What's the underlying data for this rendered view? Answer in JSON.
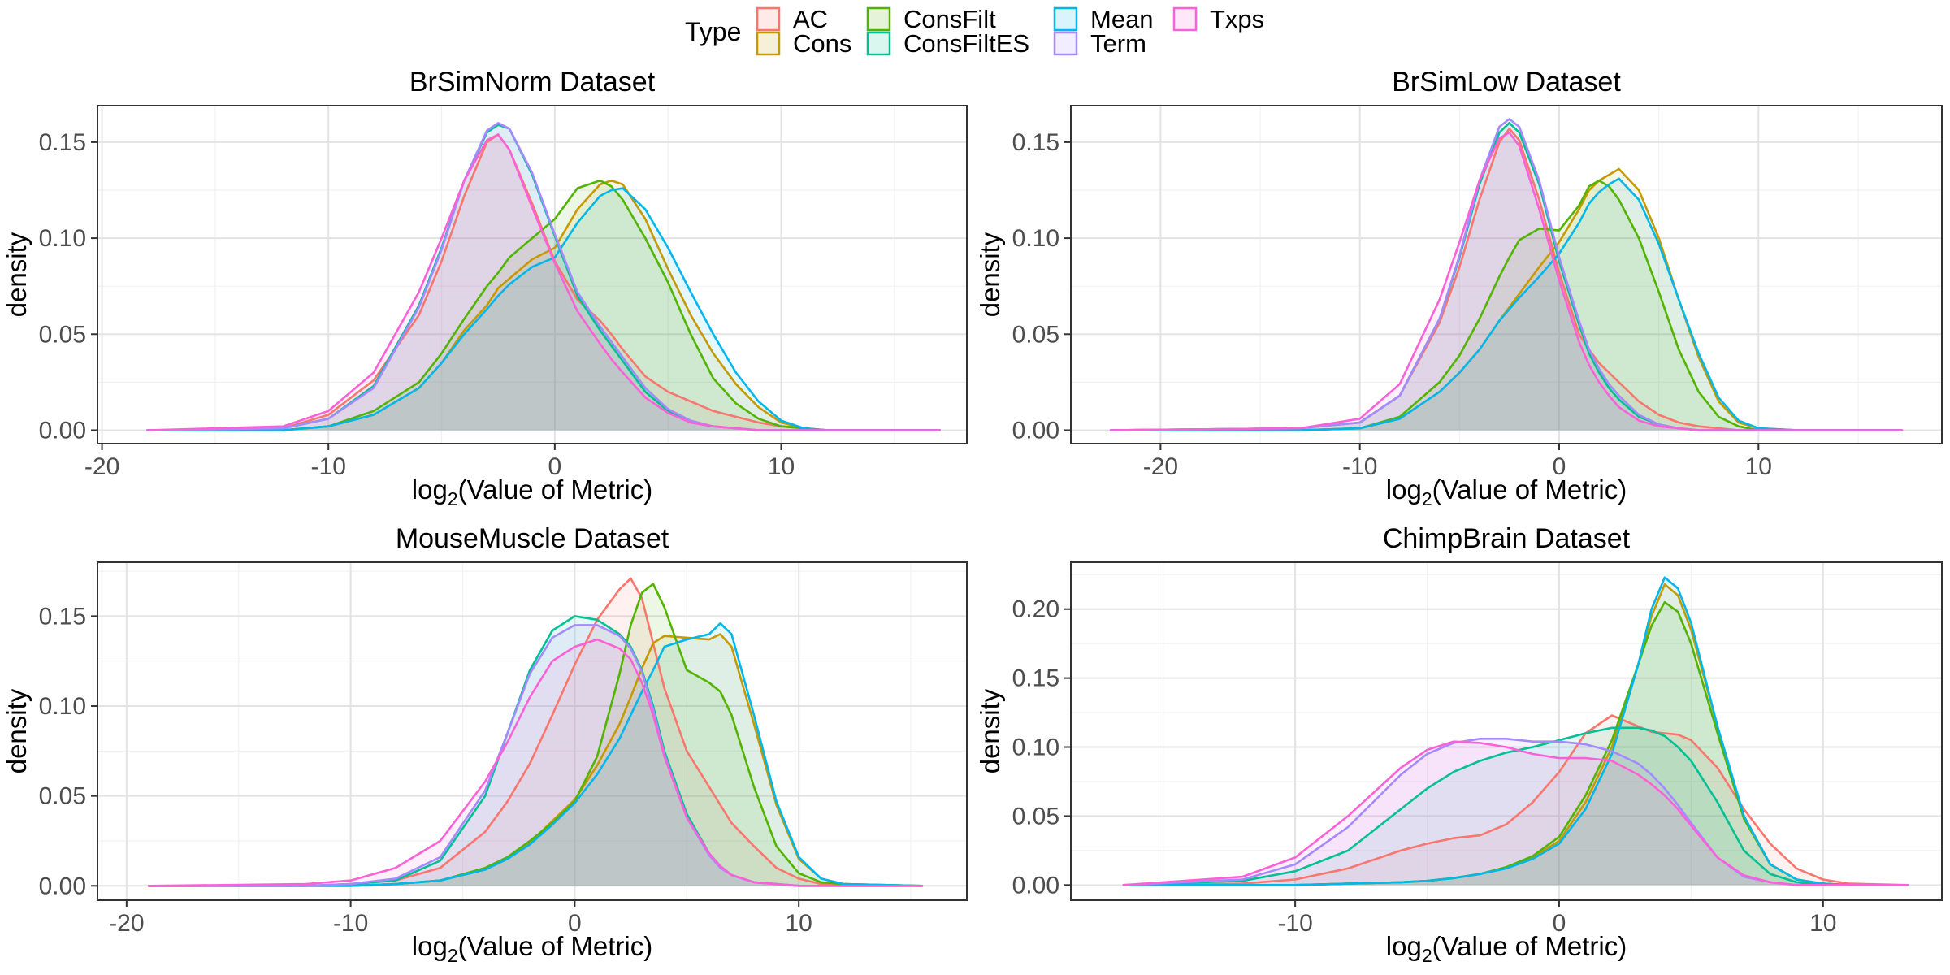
{
  "legend": {
    "title": "Type",
    "items": [
      {
        "label": "AC",
        "color": "#F8766D"
      },
      {
        "label": "Cons",
        "color": "#C49A00"
      },
      {
        "label": "ConsFilt",
        "color": "#53B400"
      },
      {
        "label": "ConsFiltES",
        "color": "#00C094"
      },
      {
        "label": "Mean",
        "color": "#00B6EB"
      },
      {
        "label": "Term",
        "color": "#A58AFF"
      },
      {
        "label": "Txps",
        "color": "#FB61D7"
      }
    ],
    "placement": "top"
  },
  "chart_data": [
    {
      "type": "area",
      "title": "BrSimNorm Dataset",
      "xlabel": "log2(Value of Metric)",
      "ylabel": "density",
      "xlim": [
        -20.2,
        18.2
      ],
      "ylim": [
        -0.007,
        0.169
      ],
      "xticks": [
        -20,
        -10,
        0,
        10
      ],
      "xtick_labels": [
        "-20",
        "-10",
        "0",
        "10"
      ],
      "yticks": [
        0,
        0.05,
        0.1,
        0.15
      ],
      "ytick_labels": [
        "0.00",
        "0.05",
        "0.10",
        "0.15"
      ],
      "grid": true,
      "x": [
        -18,
        -12,
        -10,
        -8,
        -6,
        -5,
        -4,
        -3,
        -2.5,
        -2,
        -1,
        0,
        1,
        2,
        2.5,
        3,
        4,
        5,
        6,
        7,
        8,
        9,
        10,
        11,
        12,
        14,
        17
      ],
      "series": [
        {
          "name": "AC",
          "values": [
            0,
            0.001,
            0.008,
            0.026,
            0.06,
            0.088,
            0.122,
            0.15,
            0.154,
            0.146,
            0.118,
            0.088,
            0.068,
            0.057,
            0.05,
            0.042,
            0.028,
            0.02,
            0.015,
            0.01,
            0.007,
            0.004,
            0.002,
            0.001,
            0,
            0,
            0
          ]
        },
        {
          "name": "Cons",
          "values": [
            0,
            0,
            0.002,
            0.008,
            0.022,
            0.035,
            0.052,
            0.065,
            0.074,
            0.079,
            0.089,
            0.095,
            0.115,
            0.128,
            0.13,
            0.128,
            0.11,
            0.084,
            0.06,
            0.04,
            0.024,
            0.012,
            0.004,
            0.001,
            0,
            0,
            0
          ]
        },
        {
          "name": "ConsFilt",
          "values": [
            0,
            0,
            0.002,
            0.01,
            0.025,
            0.04,
            0.058,
            0.075,
            0.082,
            0.09,
            0.1,
            0.11,
            0.126,
            0.13,
            0.127,
            0.12,
            0.1,
            0.077,
            0.05,
            0.027,
            0.014,
            0.006,
            0.002,
            0.001,
            0,
            0,
            0
          ]
        },
        {
          "name": "ConsFiltES",
          "values": [
            0,
            0.001,
            0.006,
            0.023,
            0.065,
            0.095,
            0.13,
            0.155,
            0.159,
            0.157,
            0.133,
            0.101,
            0.07,
            0.052,
            0.044,
            0.036,
            0.02,
            0.01,
            0.004,
            0.002,
            0.001,
            0,
            0,
            0,
            0,
            0,
            0
          ]
        },
        {
          "name": "Mean",
          "values": [
            0,
            0,
            0.002,
            0.008,
            0.022,
            0.035,
            0.05,
            0.063,
            0.07,
            0.076,
            0.085,
            0.09,
            0.108,
            0.122,
            0.125,
            0.126,
            0.115,
            0.095,
            0.072,
            0.05,
            0.03,
            0.015,
            0.005,
            0.001,
            0,
            0,
            0
          ]
        },
        {
          "name": "Term",
          "values": [
            0,
            0.001,
            0.006,
            0.022,
            0.064,
            0.094,
            0.13,
            0.156,
            0.16,
            0.157,
            0.134,
            0.102,
            0.072,
            0.054,
            0.046,
            0.038,
            0.022,
            0.011,
            0.005,
            0.002,
            0.001,
            0,
            0,
            0,
            0,
            0,
            0
          ]
        },
        {
          "name": "Txps",
          "values": [
            0,
            0.002,
            0.01,
            0.03,
            0.072,
            0.1,
            0.13,
            0.151,
            0.154,
            0.146,
            0.116,
            0.087,
            0.062,
            0.045,
            0.037,
            0.03,
            0.017,
            0.009,
            0.004,
            0.002,
            0.001,
            0,
            0,
            0,
            0,
            0,
            0
          ]
        }
      ]
    },
    {
      "type": "area",
      "title": "BrSimLow Dataset",
      "xlabel": "log2(Value of Metric)",
      "ylabel": "density",
      "xlim": [
        -24.5,
        19.2
      ],
      "ylim": [
        -0.007,
        0.169
      ],
      "xticks": [
        -20,
        -10,
        0,
        10
      ],
      "xtick_labels": [
        "-20",
        "-10",
        "0",
        "10"
      ],
      "yticks": [
        0,
        0.05,
        0.1,
        0.15
      ],
      "ytick_labels": [
        "0.00",
        "0.05",
        "0.10",
        "0.15"
      ],
      "grid": true,
      "x": [
        -22.5,
        -13,
        -10,
        -8,
        -6,
        -5,
        -4,
        -3,
        -2.5,
        -2,
        -1,
        0,
        1,
        1.5,
        2,
        2.5,
        3,
        4,
        5,
        6,
        7,
        8,
        9,
        10,
        12,
        14,
        17.2
      ],
      "series": [
        {
          "name": "AC",
          "values": [
            0,
            0.001,
            0.004,
            0.018,
            0.056,
            0.085,
            0.12,
            0.15,
            0.157,
            0.151,
            0.12,
            0.082,
            0.05,
            0.042,
            0.035,
            0.03,
            0.025,
            0.015,
            0.008,
            0.004,
            0.002,
            0.001,
            0,
            0,
            0,
            0,
            0
          ]
        },
        {
          "name": "Cons",
          "values": [
            0,
            0,
            0.001,
            0.006,
            0.02,
            0.03,
            0.042,
            0.057,
            0.064,
            0.071,
            0.085,
            0.098,
            0.115,
            0.125,
            0.13,
            0.133,
            0.136,
            0.125,
            0.1,
            0.068,
            0.038,
            0.015,
            0.004,
            0.001,
            0,
            0,
            0
          ]
        },
        {
          "name": "ConsFilt",
          "values": [
            0,
            0,
            0.001,
            0.007,
            0.025,
            0.039,
            0.058,
            0.08,
            0.09,
            0.099,
            0.105,
            0.104,
            0.117,
            0.127,
            0.13,
            0.127,
            0.12,
            0.1,
            0.072,
            0.042,
            0.02,
            0.007,
            0.002,
            0,
            0,
            0,
            0
          ]
        },
        {
          "name": "ConsFiltES",
          "values": [
            0,
            0.001,
            0.004,
            0.018,
            0.058,
            0.09,
            0.128,
            0.155,
            0.16,
            0.155,
            0.128,
            0.088,
            0.055,
            0.04,
            0.03,
            0.022,
            0.016,
            0.007,
            0.003,
            0.001,
            0,
            0,
            0,
            0,
            0,
            0,
            0
          ]
        },
        {
          "name": "Mean",
          "values": [
            0,
            0,
            0.001,
            0.006,
            0.02,
            0.03,
            0.042,
            0.057,
            0.063,
            0.069,
            0.08,
            0.092,
            0.108,
            0.118,
            0.124,
            0.128,
            0.131,
            0.12,
            0.097,
            0.068,
            0.04,
            0.017,
            0.005,
            0.001,
            0,
            0,
            0
          ]
        },
        {
          "name": "Term",
          "values": [
            0,
            0.001,
            0.004,
            0.018,
            0.058,
            0.091,
            0.13,
            0.158,
            0.162,
            0.158,
            0.13,
            0.09,
            0.057,
            0.042,
            0.032,
            0.024,
            0.018,
            0.008,
            0.003,
            0.001,
            0,
            0,
            0,
            0,
            0,
            0,
            0
          ]
        },
        {
          "name": "Txps",
          "values": [
            0,
            0.001,
            0.006,
            0.024,
            0.068,
            0.098,
            0.13,
            0.152,
            0.155,
            0.148,
            0.115,
            0.078,
            0.046,
            0.034,
            0.025,
            0.018,
            0.012,
            0.005,
            0.002,
            0.001,
            0,
            0,
            0,
            0,
            0,
            0,
            0
          ]
        }
      ]
    },
    {
      "type": "area",
      "title": "MouseMuscle Dataset",
      "xlabel": "log2(Value of Metric)",
      "ylabel": "density",
      "xlim": [
        -21.3,
        17.5
      ],
      "ylim": [
        -0.008,
        0.18
      ],
      "xticks": [
        -20,
        -10,
        0,
        10
      ],
      "xtick_labels": [
        "-20",
        "-10",
        "0",
        "10"
      ],
      "yticks": [
        0,
        0.05,
        0.1,
        0.15
      ],
      "ytick_labels": [
        "0.00",
        "0.05",
        "0.10",
        "0.15"
      ],
      "grid": true,
      "x": [
        -19,
        -12,
        -10,
        -8,
        -6,
        -4,
        -3,
        -2,
        -1,
        0,
        1,
        2,
        2.5,
        3,
        3.5,
        4,
        5,
        6,
        6.5,
        7,
        8,
        9,
        10,
        11,
        12,
        15.5
      ],
      "series": [
        {
          "name": "AC",
          "values": [
            0,
            0,
            0.001,
            0.003,
            0.01,
            0.03,
            0.047,
            0.068,
            0.095,
            0.123,
            0.148,
            0.165,
            0.171,
            0.16,
            0.135,
            0.11,
            0.075,
            0.055,
            0.045,
            0.035,
            0.022,
            0.01,
            0.004,
            0.001,
            0,
            0
          ]
        },
        {
          "name": "Cons",
          "values": [
            0,
            0,
            0,
            0.001,
            0.003,
            0.009,
            0.015,
            0.024,
            0.036,
            0.048,
            0.067,
            0.09,
            0.105,
            0.121,
            0.135,
            0.139,
            0.138,
            0.137,
            0.14,
            0.133,
            0.09,
            0.045,
            0.015,
            0.004,
            0.001,
            0
          ]
        },
        {
          "name": "ConsFilt",
          "values": [
            0,
            0,
            0,
            0.001,
            0.003,
            0.01,
            0.016,
            0.025,
            0.035,
            0.047,
            0.072,
            0.118,
            0.145,
            0.163,
            0.168,
            0.155,
            0.12,
            0.113,
            0.108,
            0.095,
            0.055,
            0.022,
            0.007,
            0.002,
            0.001,
            0
          ]
        },
        {
          "name": "ConsFiltES",
          "values": [
            0,
            0,
            0.001,
            0.003,
            0.014,
            0.05,
            0.085,
            0.12,
            0.142,
            0.15,
            0.148,
            0.14,
            0.133,
            0.12,
            0.1,
            0.075,
            0.04,
            0.018,
            0.011,
            0.006,
            0.002,
            0.001,
            0,
            0,
            0,
            0
          ]
        },
        {
          "name": "Mean",
          "values": [
            0,
            0,
            0,
            0.001,
            0.003,
            0.009,
            0.015,
            0.023,
            0.034,
            0.046,
            0.062,
            0.082,
            0.095,
            0.108,
            0.12,
            0.133,
            0.137,
            0.14,
            0.146,
            0.14,
            0.095,
            0.047,
            0.016,
            0.004,
            0.001,
            0
          ]
        },
        {
          "name": "Term",
          "values": [
            0,
            0,
            0.001,
            0.004,
            0.016,
            0.053,
            0.085,
            0.118,
            0.138,
            0.145,
            0.145,
            0.139,
            0.132,
            0.119,
            0.098,
            0.073,
            0.038,
            0.017,
            0.01,
            0.006,
            0.002,
            0.001,
            0,
            0,
            0,
            0
          ]
        },
        {
          "name": "Txps",
          "values": [
            0,
            0.001,
            0.003,
            0.01,
            0.025,
            0.058,
            0.08,
            0.105,
            0.125,
            0.133,
            0.137,
            0.132,
            0.126,
            0.113,
            0.095,
            0.072,
            0.038,
            0.018,
            0.011,
            0.006,
            0.002,
            0.001,
            0,
            0,
            0,
            0
          ]
        }
      ]
    },
    {
      "type": "area",
      "title": "ChimpBrain Dataset",
      "xlabel": "log2(Value of Metric)",
      "ylabel": "density",
      "xlim": [
        -18.5,
        14.5
      ],
      "ylim": [
        -0.011,
        0.234
      ],
      "xticks": [
        -10,
        0,
        10
      ],
      "xtick_labels": [
        "-10",
        "0",
        "10"
      ],
      "yticks": [
        0,
        0.05,
        0.1,
        0.15,
        0.2
      ],
      "ytick_labels": [
        "0.00",
        "0.05",
        "0.10",
        "0.15",
        "0.20"
      ],
      "grid": true,
      "x": [
        -16.5,
        -12,
        -10,
        -8,
        -6,
        -5,
        -4,
        -3,
        -2,
        -1,
        0,
        1,
        2,
        3,
        3.5,
        4,
        4.5,
        5,
        6,
        7,
        8,
        9,
        10,
        11,
        13.2
      ],
      "series": [
        {
          "name": "AC",
          "values": [
            0,
            0.001,
            0.004,
            0.012,
            0.025,
            0.03,
            0.034,
            0.036,
            0.044,
            0.06,
            0.082,
            0.11,
            0.123,
            0.115,
            0.111,
            0.11,
            0.109,
            0.105,
            0.085,
            0.055,
            0.03,
            0.012,
            0.004,
            0.001,
            0
          ]
        },
        {
          "name": "Cons",
          "values": [
            0,
            0,
            0,
            0.001,
            0.002,
            0.003,
            0.005,
            0.008,
            0.013,
            0.02,
            0.032,
            0.06,
            0.1,
            0.16,
            0.195,
            0.218,
            0.21,
            0.185,
            0.115,
            0.05,
            0.015,
            0.004,
            0.001,
            0,
            0
          ]
        },
        {
          "name": "ConsFilt",
          "values": [
            0,
            0,
            0,
            0.001,
            0.002,
            0.003,
            0.005,
            0.008,
            0.013,
            0.021,
            0.035,
            0.065,
            0.105,
            0.16,
            0.188,
            0.205,
            0.198,
            0.175,
            0.11,
            0.048,
            0.015,
            0.004,
            0.001,
            0,
            0
          ]
        },
        {
          "name": "ConsFiltES",
          "values": [
            0,
            0.003,
            0.01,
            0.025,
            0.055,
            0.07,
            0.082,
            0.09,
            0.096,
            0.1,
            0.105,
            0.11,
            0.114,
            0.114,
            0.112,
            0.108,
            0.1,
            0.09,
            0.06,
            0.025,
            0.008,
            0.002,
            0,
            0,
            0
          ]
        },
        {
          "name": "Mean",
          "values": [
            0,
            0,
            0,
            0.001,
            0.002,
            0.003,
            0.005,
            0.008,
            0.012,
            0.019,
            0.03,
            0.055,
            0.095,
            0.16,
            0.2,
            0.223,
            0.215,
            0.19,
            0.115,
            0.05,
            0.015,
            0.004,
            0.001,
            0,
            0
          ]
        },
        {
          "name": "Term",
          "values": [
            0,
            0.004,
            0.015,
            0.042,
            0.08,
            0.095,
            0.103,
            0.106,
            0.106,
            0.104,
            0.104,
            0.102,
            0.097,
            0.088,
            0.08,
            0.07,
            0.058,
            0.045,
            0.02,
            0.006,
            0.002,
            0,
            0,
            0,
            0
          ]
        },
        {
          "name": "Txps",
          "values": [
            0,
            0.006,
            0.02,
            0.05,
            0.085,
            0.098,
            0.104,
            0.103,
            0.1,
            0.095,
            0.092,
            0.092,
            0.09,
            0.08,
            0.073,
            0.065,
            0.055,
            0.043,
            0.02,
            0.007,
            0.002,
            0,
            0,
            0,
            0
          ]
        }
      ]
    }
  ]
}
